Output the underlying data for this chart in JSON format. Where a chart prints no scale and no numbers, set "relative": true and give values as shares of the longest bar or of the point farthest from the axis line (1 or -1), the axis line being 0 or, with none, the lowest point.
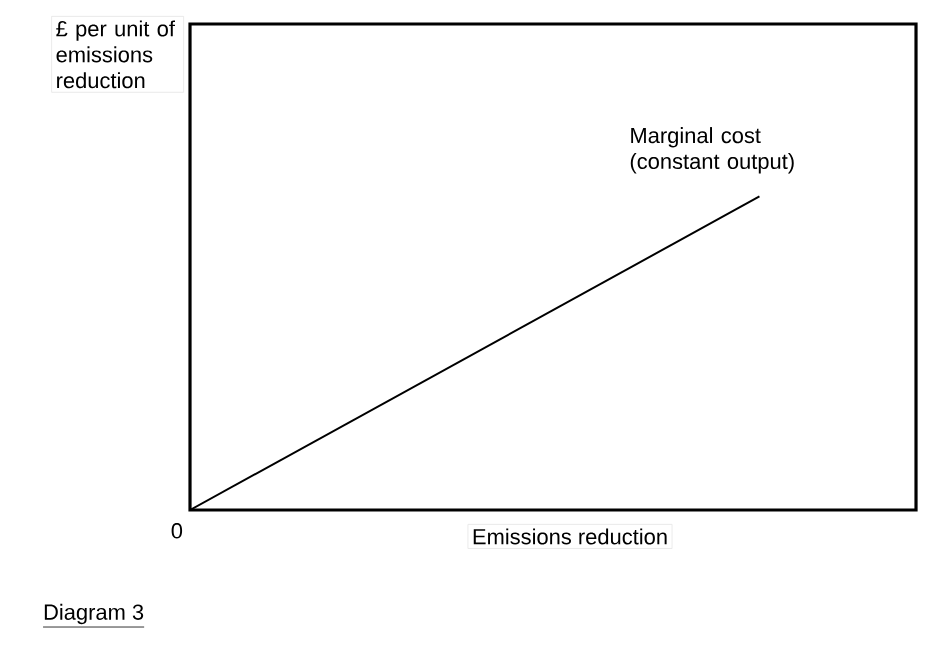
{
  "chart_data": {
    "type": "line",
    "relative": true,
    "xlabel": "Emissions reduction",
    "ylabel": "£ per unit of emissions reduction",
    "categories": [
      null,
      null
    ],
    "series": [
      {
        "color": "#000000",
        "values": [
          0,
          1
        ]
      }
    ],
    "marker": "none",
    "line_style": "solid",
    "annotations": [
      "Marginal cost (constant output)",
      "Diagram 3",
      "0"
    ]
  }
}
